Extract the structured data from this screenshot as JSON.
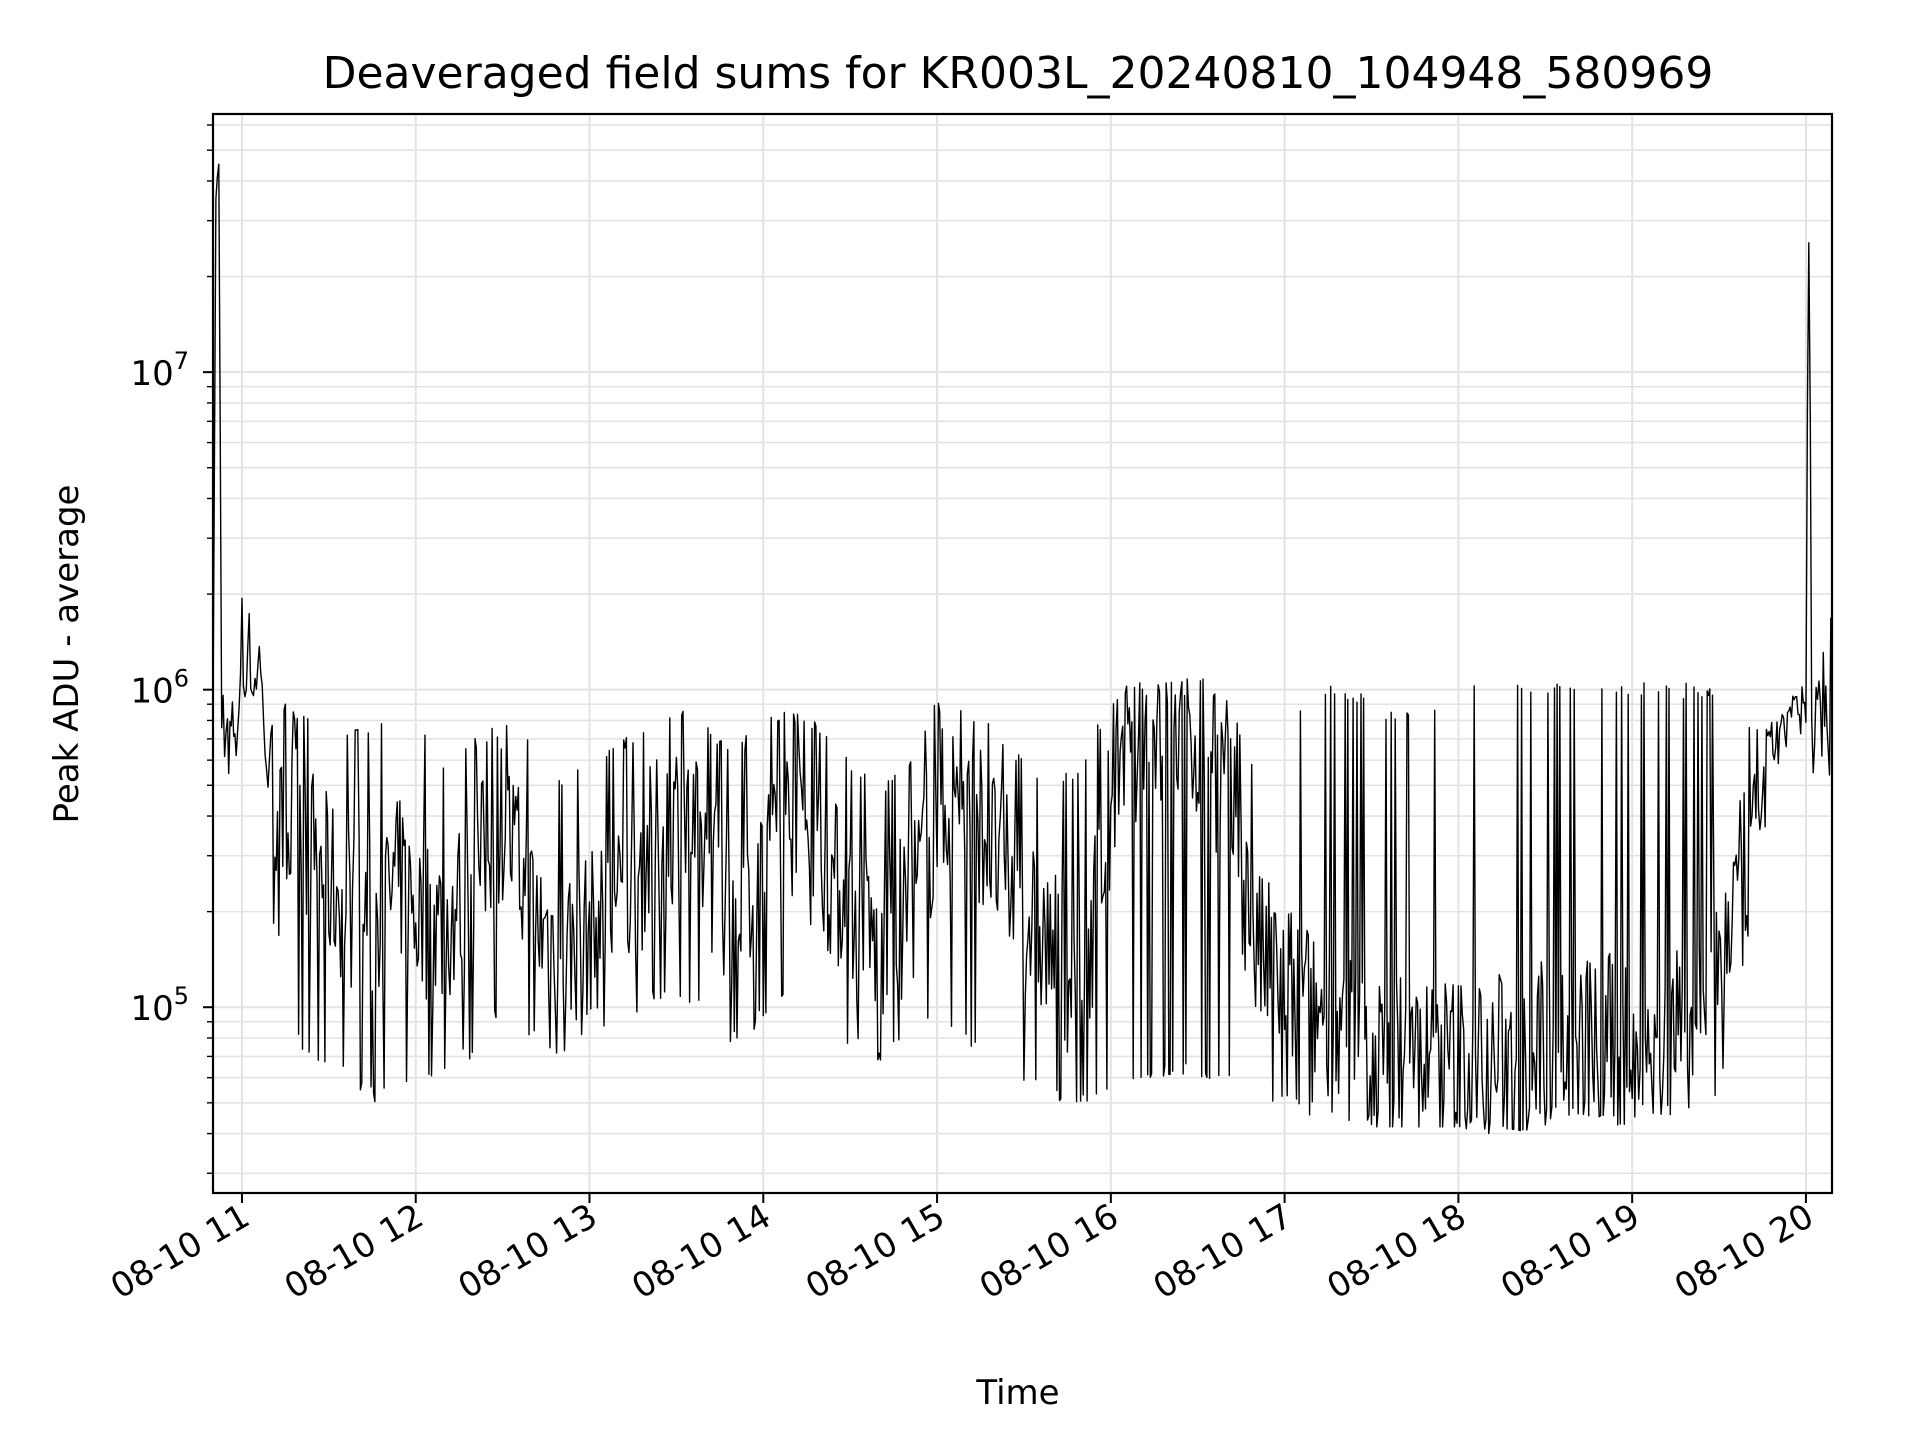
{
  "chart_data": {
    "type": "line",
    "title": "Deaveraged field sums for KR003L_20240810_104948_580969",
    "xlabel": "Time",
    "ylabel": "Peak ADU - average",
    "x_range": [
      "2024-08-10T10:50:00",
      "2024-08-10T20:09:00"
    ],
    "y_scale": "log",
    "ylim": [
      26000,
      65000000
    ],
    "grid": true,
    "legend": "none",
    "line_color": "#000000",
    "x_ticks": [
      {
        "time": "2024-08-10T11:00:00",
        "label": "08-10 11"
      },
      {
        "time": "2024-08-10T12:00:00",
        "label": "08-10 12"
      },
      {
        "time": "2024-08-10T13:00:00",
        "label": "08-10 13"
      },
      {
        "time": "2024-08-10T14:00:00",
        "label": "08-10 14"
      },
      {
        "time": "2024-08-10T15:00:00",
        "label": "08-10 15"
      },
      {
        "time": "2024-08-10T16:00:00",
        "label": "08-10 16"
      },
      {
        "time": "2024-08-10T17:00:00",
        "label": "08-10 17"
      },
      {
        "time": "2024-08-10T18:00:00",
        "label": "08-10 18"
      },
      {
        "time": "2024-08-10T19:00:00",
        "label": "08-10 19"
      },
      {
        "time": "2024-08-10T20:00:00",
        "label": "08-10 20"
      }
    ],
    "y_ticks": [
      {
        "value": 100000,
        "base": "10",
        "exp": "5"
      },
      {
        "value": 1000000,
        "base": "10",
        "exp": "6"
      },
      {
        "value": 10000000,
        "base": "10",
        "exp": "7"
      }
    ],
    "series": [
      {
        "x": [
          "2024-08-10T10:50:00",
          "2024-08-10T10:51:00",
          "2024-08-10T10:52:00",
          "2024-08-10T10:53:00",
          "2024-08-10T10:55:00",
          "2024-08-10T10:58:00",
          "2024-08-10T11:00:00",
          "2024-08-10T11:02:00",
          "2024-08-10T11:04:00",
          "2024-08-10T11:06:00",
          "2024-08-10T11:08:00",
          "2024-08-10T11:10:00",
          "2024-08-10T11:15:00",
          "2024-08-10T11:20:00",
          "2024-08-10T11:25:00",
          "2024-08-10T11:30:00",
          "2024-08-10T11:35:00",
          "2024-08-10T11:40:00",
          "2024-08-10T11:45:00",
          "2024-08-10T11:50:00",
          "2024-08-10T11:55:00",
          "2024-08-10T12:00:00",
          "2024-08-10T12:10:00",
          "2024-08-10T12:20:00",
          "2024-08-10T12:30:00",
          "2024-08-10T12:40:00",
          "2024-08-10T12:50:00",
          "2024-08-10T13:00:00",
          "2024-08-10T13:10:00",
          "2024-08-10T13:20:00",
          "2024-08-10T13:30:00",
          "2024-08-10T13:40:00",
          "2024-08-10T13:50:00",
          "2024-08-10T14:00:00",
          "2024-08-10T14:10:00",
          "2024-08-10T14:20:00",
          "2024-08-10T14:30:00",
          "2024-08-10T14:40:00",
          "2024-08-10T14:50:00",
          "2024-08-10T15:00:00",
          "2024-08-10T15:10:00",
          "2024-08-10T15:20:00",
          "2024-08-10T15:30:00",
          "2024-08-10T15:40:00",
          "2024-08-10T15:50:00",
          "2024-08-10T16:00:00",
          "2024-08-10T16:10:00",
          "2024-08-10T16:20:00",
          "2024-08-10T16:30:00",
          "2024-08-10T16:40:00",
          "2024-08-10T16:50:00",
          "2024-08-10T17:00:00",
          "2024-08-10T17:10:00",
          "2024-08-10T17:20:00",
          "2024-08-10T17:30:00",
          "2024-08-10T17:40:00",
          "2024-08-10T17:50:00",
          "2024-08-10T18:00:00",
          "2024-08-10T18:10:00",
          "2024-08-10T18:20:00",
          "2024-08-10T18:30:00",
          "2024-08-10T18:40:00",
          "2024-08-10T18:50:00",
          "2024-08-10T19:00:00",
          "2024-08-10T19:10:00",
          "2024-08-10T19:20:00",
          "2024-08-10T19:30:00",
          "2024-08-10T19:40:00",
          "2024-08-10T19:45:00",
          "2024-08-10T19:50:00",
          "2024-08-10T19:55:00",
          "2024-08-10T20:00:00",
          "2024-08-10T20:01:00",
          "2024-08-10T20:02:00",
          "2024-08-10T20:04:00",
          "2024-08-10T20:06:00",
          "2024-08-10T20:09:00"
        ],
        "y": [
          800000,
          35000000,
          45000000,
          900000,
          700000,
          800000,
          900000,
          1500000,
          1000000,
          1300000,
          700000,
          400000,
          350000,
          400000,
          300000,
          250000,
          220000,
          200000,
          180000,
          220000,
          250000,
          200000,
          180000,
          250000,
          400000,
          200000,
          150000,
          170000,
          200000,
          300000,
          400000,
          300000,
          200000,
          300000,
          400000,
          300000,
          200000,
          150000,
          200000,
          400000,
          500000,
          300000,
          200000,
          150000,
          120000,
          400000,
          600000,
          700000,
          700000,
          500000,
          150000,
          120000,
          100000,
          80000,
          70000,
          70000,
          70000,
          70000,
          70000,
          70000,
          80000,
          80000,
          80000,
          80000,
          80000,
          90000,
          150000,
          300000,
          500000,
          750000,
          850000,
          900000,
          46000000,
          700000,
          900000,
          800000,
          900000
        ],
        "spread_top": [
          900000,
          40000000,
          46000000,
          1500000,
          1100000,
          1300000,
          2000000,
          2400000,
          1800000,
          1700000,
          1100000,
          800000,
          900000,
          900000,
          900000,
          850000,
          800000,
          750000,
          750000,
          800000,
          800000,
          800000,
          600000,
          700000,
          800000,
          700000,
          550000,
          600000,
          700000,
          800000,
          900000,
          800000,
          650000,
          850000,
          850000,
          800000,
          600000,
          500000,
          600000,
          950000,
          900000,
          800000,
          600000,
          550000,
          600000,
          1000000,
          1050000,
          1050000,
          1100000,
          1000000,
          550000,
          750000,
          1000000,
          1050000,
          950000,
          850000,
          900000,
          1050000,
          1050000,
          1050000,
          1050000,
          1050000,
          1050000,
          1050000,
          1050000,
          1050000,
          1050000,
          800000,
          800000,
          900000,
          1000000,
          1200000,
          46000000,
          1100000,
          1200000,
          1400000,
          1800000
        ],
        "spread_bottom": [
          700000,
          30000000,
          40000000,
          500000,
          500000,
          600000,
          600000,
          900000,
          700000,
          900000,
          500000,
          200000,
          120000,
          70000,
          65000,
          65000,
          60000,
          55000,
          50000,
          50000,
          55000,
          60000,
          60000,
          70000,
          100000,
          80000,
          70000,
          80000,
          90000,
          100000,
          110000,
          90000,
          75000,
          90000,
          110000,
          95000,
          75000,
          65000,
          75000,
          90000,
          75000,
          60000,
          55000,
          50000,
          48000,
          55000,
          60000,
          60000,
          60000,
          55000,
          50000,
          48000,
          45000,
          42000,
          42000,
          42000,
          42000,
          42000,
          40000,
          40000,
          42000,
          42000,
          42000,
          42000,
          42000,
          45000,
          50000,
          150000,
          300000,
          550000,
          650000,
          700000,
          1000000,
          500000,
          550000,
          500000,
          500000
        ]
      }
    ]
  }
}
